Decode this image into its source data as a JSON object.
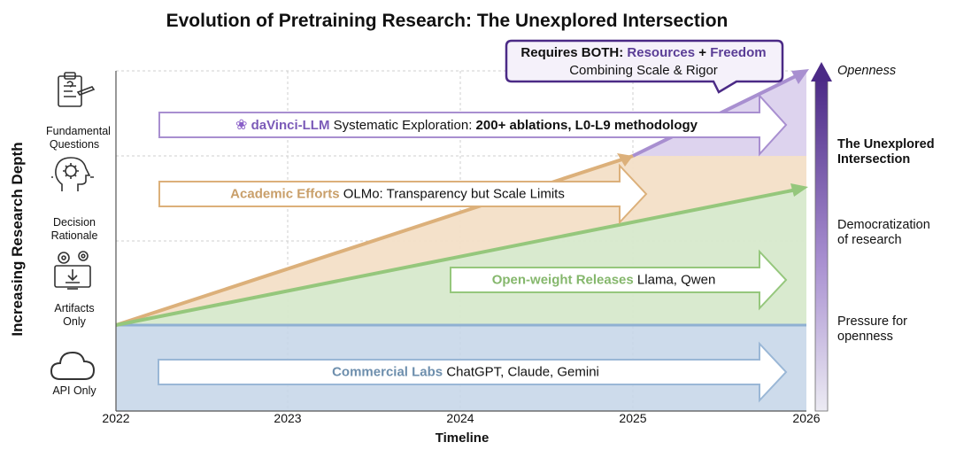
{
  "title": "Evolution of Pretraining Research: The Unexplored Intersection",
  "y_axis_label": "Increasing Research Depth",
  "x_axis_label": "Timeline",
  "ticks": [
    "2022",
    "2023",
    "2024",
    "2025",
    "2026"
  ],
  "levels": {
    "fundamental": [
      "Fundamental",
      "Questions"
    ],
    "decision": [
      "Decision",
      "Rationale"
    ],
    "artifacts": [
      "Artifacts",
      "Only"
    ],
    "api": [
      "API Only"
    ]
  },
  "arrows": {
    "davinci": {
      "name": "daVinci-LLM",
      "rest": " Systematic Exploration: ",
      "bold": "200+ ablations, L0-L9 methodology"
    },
    "academic": {
      "name": "Academic Efforts",
      "rest": " OLMo: Transparency but Scale Limits"
    },
    "openweight": {
      "name": "Open-weight Releases",
      "rest": " Llama, Qwen"
    },
    "commercial": {
      "name": "Commercial Labs",
      "rest": " ChatGPT, Claude, Gemini"
    }
  },
  "callout": {
    "lead": "Requires BOTH: ",
    "resources": "Resources",
    "plus": " + ",
    "freedom": "Freedom",
    "line2": "Combining Scale & Rigor"
  },
  "right_panel": {
    "openness": "Openness",
    "unexplored": [
      "The Unexplored",
      "Intersection"
    ],
    "democratization": [
      "Democratization",
      "of research"
    ],
    "pressure": [
      "Pressure for",
      "openness"
    ]
  },
  "colors": {
    "purple": "#7b5bb8",
    "purple_dark": "#4b2a86",
    "tan": "#d9ad78",
    "green": "#92c67a",
    "blue": "#9ab7d6",
    "commercial_text": "#6e8fad",
    "academic_text": "#c99f6a",
    "green_text": "#85b76c"
  }
}
